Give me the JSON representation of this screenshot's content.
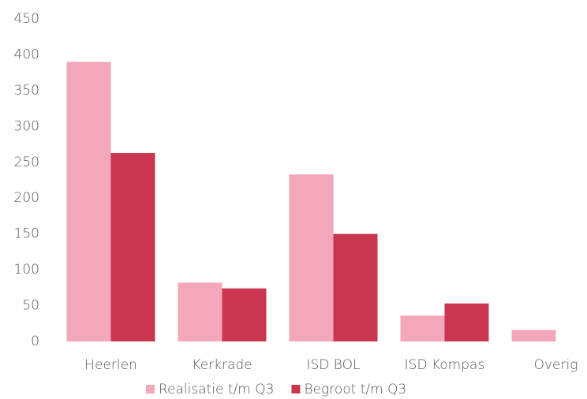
{
  "chart_data": {
    "type": "bar",
    "categories": [
      "Heerlen",
      "Kerkrade",
      "ISD BOL",
      "ISD Kompas",
      "Overig"
    ],
    "series": [
      {
        "name": "Realisatie t/m Q3",
        "color": "#f4a6ba",
        "values": [
          390,
          82,
          233,
          36,
          16
        ]
      },
      {
        "name": "Begroot t/m Q3",
        "color": "#c9364f",
        "values": [
          263,
          74,
          150,
          53,
          0
        ]
      }
    ],
    "ylim": [
      0,
      450
    ],
    "yticks": [
      0,
      50,
      100,
      150,
      200,
      250,
      300,
      350,
      400,
      450
    ],
    "legend": "bottom"
  }
}
